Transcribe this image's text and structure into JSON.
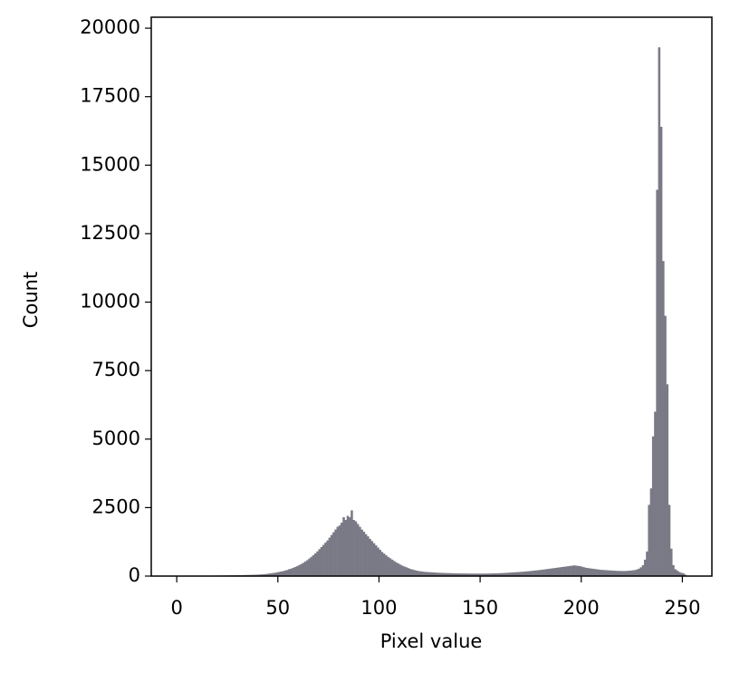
{
  "chart_data": {
    "type": "histogram",
    "xlabel": "Pixel value",
    "ylabel": "Count",
    "color": "#7a7a86",
    "xlim": [
      -12.6,
      264.6
    ],
    "ylim": [
      0,
      20400
    ],
    "xticks": [
      0,
      50,
      100,
      150,
      200,
      250
    ],
    "yticks": [
      0,
      2500,
      5000,
      7500,
      10000,
      12500,
      15000,
      17500,
      20000
    ],
    "bins": [
      0,
      1,
      2,
      3,
      4,
      5,
      6,
      7,
      8,
      9,
      10,
      11,
      12,
      13,
      14,
      15,
      16,
      17,
      18,
      19,
      20,
      21,
      22,
      23,
      24,
      25,
      26,
      27,
      28,
      29,
      30,
      31,
      32,
      33,
      34,
      35,
      36,
      37,
      38,
      39,
      40,
      41,
      42,
      43,
      44,
      45,
      46,
      47,
      48,
      49,
      50,
      51,
      52,
      53,
      54,
      55,
      56,
      57,
      58,
      59,
      60,
      61,
      62,
      63,
      64,
      65,
      66,
      67,
      68,
      69,
      70,
      71,
      72,
      73,
      74,
      75,
      76,
      77,
      78,
      79,
      80,
      81,
      82,
      83,
      84,
      85,
      86,
      87,
      88,
      89,
      90,
      91,
      92,
      93,
      94,
      95,
      96,
      97,
      98,
      99,
      100,
      101,
      102,
      103,
      104,
      105,
      106,
      107,
      108,
      109,
      110,
      111,
      112,
      113,
      114,
      115,
      116,
      117,
      118,
      119,
      120,
      121,
      122,
      123,
      124,
      125,
      126,
      127,
      128,
      129,
      130,
      131,
      132,
      133,
      134,
      135,
      136,
      137,
      138,
      139,
      140,
      141,
      142,
      143,
      144,
      145,
      146,
      147,
      148,
      149,
      150,
      151,
      152,
      153,
      154,
      155,
      156,
      157,
      158,
      159,
      160,
      161,
      162,
      163,
      164,
      165,
      166,
      167,
      168,
      169,
      170,
      171,
      172,
      173,
      174,
      175,
      176,
      177,
      178,
      179,
      180,
      181,
      182,
      183,
      184,
      185,
      186,
      187,
      188,
      189,
      190,
      191,
      192,
      193,
      194,
      195,
      196,
      197,
      198,
      199,
      200,
      201,
      202,
      203,
      204,
      205,
      206,
      207,
      208,
      209,
      210,
      211,
      212,
      213,
      214,
      215,
      216,
      217,
      218,
      219,
      220,
      221,
      222,
      223,
      224,
      225,
      226,
      227,
      228,
      229,
      230,
      231,
      232,
      233,
      234,
      235,
      236,
      237,
      238,
      239,
      240,
      241,
      242,
      243,
      244,
      245,
      246,
      247,
      248,
      249,
      250,
      251,
      252
    ],
    "values": [
      5,
      3,
      3,
      4,
      5,
      6,
      6,
      8,
      8,
      10,
      10,
      12,
      12,
      14,
      14,
      15,
      16,
      18,
      18,
      20,
      20,
      22,
      22,
      24,
      25,
      26,
      28,
      28,
      30,
      32,
      32,
      34,
      36,
      38,
      40,
      42,
      44,
      46,
      48,
      50,
      55,
      60,
      65,
      70,
      80,
      90,
      100,
      110,
      120,
      135,
      150,
      165,
      180,
      200,
      220,
      250,
      270,
      300,
      330,
      360,
      400,
      440,
      480,
      530,
      580,
      640,
      700,
      760,
      830,
      900,
      980,
      1060,
      1140,
      1220,
      1300,
      1400,
      1500,
      1600,
      1700,
      1800,
      1850,
      1950,
      2150,
      2050,
      2200,
      2150,
      2400,
      2050,
      2000,
      1900,
      1800,
      1700,
      1620,
      1530,
      1450,
      1360,
      1280,
      1200,
      1120,
      1040,
      960,
      880,
      820,
      760,
      700,
      650,
      600,
      550,
      500,
      460,
      420,
      380,
      350,
      320,
      290,
      260,
      240,
      220,
      200,
      185,
      175,
      165,
      155,
      150,
      145,
      140,
      135,
      130,
      125,
      120,
      118,
      115,
      112,
      110,
      108,
      105,
      102,
      100,
      98,
      96,
      95,
      95,
      94,
      93,
      92,
      92,
      91,
      90,
      90,
      90,
      90,
      90,
      91,
      92,
      93,
      95,
      97,
      100,
      102,
      105,
      108,
      112,
      116,
      120,
      125,
      130,
      135,
      140,
      145,
      150,
      155,
      160,
      168,
      175,
      182,
      190,
      198,
      206,
      214,
      222,
      230,
      240,
      250,
      260,
      270,
      280,
      290,
      300,
      310,
      320,
      330,
      340,
      350,
      360,
      370,
      380,
      390,
      380,
      370,
      360,
      340,
      320,
      300,
      290,
      280,
      270,
      260,
      250,
      240,
      230,
      225,
      220,
      215,
      210,
      205,
      200,
      195,
      190,
      190,
      185,
      185,
      185,
      190,
      195,
      200,
      210,
      220,
      240,
      270,
      320,
      400,
      600,
      900,
      2600,
      3200,
      5100,
      6000,
      14100,
      19300,
      16400,
      11500,
      9500,
      7000,
      2600,
      1000,
      400,
      250,
      200,
      150,
      120,
      100,
      50
    ]
  }
}
